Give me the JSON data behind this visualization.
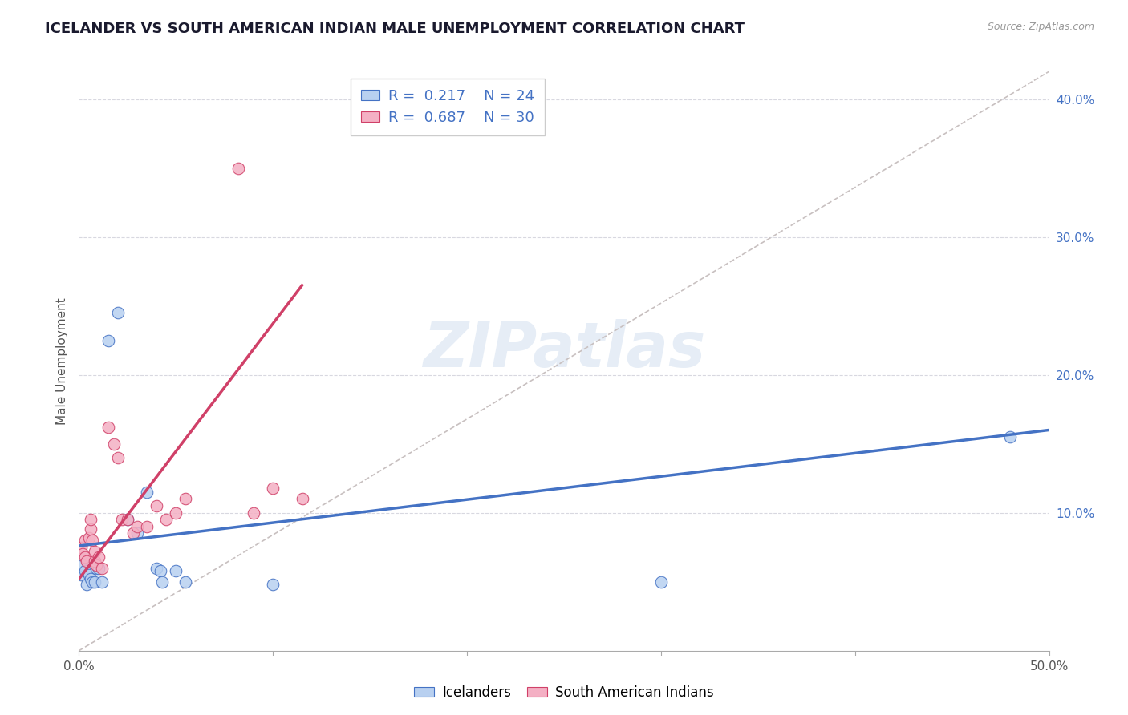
{
  "title": "ICELANDER VS SOUTH AMERICAN INDIAN MALE UNEMPLOYMENT CORRELATION CHART",
  "source": "Source: ZipAtlas.com",
  "ylabel": "Male Unemployment",
  "xlim": [
    0.0,
    0.5
  ],
  "ylim": [
    0.0,
    0.42
  ],
  "R_icelander": 0.217,
  "N_icelander": 24,
  "R_sai": 0.687,
  "N_sai": 30,
  "icelander_fill": "#b8d0f0",
  "sai_fill": "#f4b0c4",
  "icelander_line_color": "#4472c4",
  "sai_line_color": "#d04068",
  "diagonal_color": "#c8c0c0",
  "legend_label_1": "Icelanders",
  "legend_label_2": "South American Indians",
  "watermark_text": "ZIPatlas",
  "icelander_x": [
    0.001,
    0.002,
    0.003,
    0.004,
    0.005,
    0.006,
    0.007,
    0.008,
    0.009,
    0.01,
    0.012,
    0.015,
    0.02,
    0.025,
    0.03,
    0.035,
    0.04,
    0.042,
    0.043,
    0.05,
    0.055,
    0.1,
    0.3,
    0.48
  ],
  "icelander_y": [
    0.055,
    0.062,
    0.058,
    0.048,
    0.055,
    0.052,
    0.05,
    0.05,
    0.06,
    0.06,
    0.05,
    0.225,
    0.245,
    0.095,
    0.085,
    0.115,
    0.06,
    0.058,
    0.05,
    0.058,
    0.05,
    0.048,
    0.05,
    0.155
  ],
  "sai_x": [
    0.001,
    0.002,
    0.003,
    0.003,
    0.004,
    0.005,
    0.006,
    0.006,
    0.007,
    0.008,
    0.008,
    0.009,
    0.01,
    0.012,
    0.015,
    0.018,
    0.02,
    0.022,
    0.025,
    0.028,
    0.03,
    0.035,
    0.04,
    0.045,
    0.05,
    0.055,
    0.082,
    0.09,
    0.1,
    0.115
  ],
  "sai_y": [
    0.075,
    0.07,
    0.068,
    0.08,
    0.065,
    0.082,
    0.088,
    0.095,
    0.08,
    0.065,
    0.072,
    0.062,
    0.068,
    0.06,
    0.162,
    0.15,
    0.14,
    0.095,
    0.095,
    0.085,
    0.09,
    0.09,
    0.105,
    0.095,
    0.1,
    0.11,
    0.35,
    0.1,
    0.118,
    0.11
  ],
  "ice_line_x": [
    0.0,
    0.5
  ],
  "ice_line_y": [
    0.076,
    0.16
  ],
  "sai_line_x": [
    0.0,
    0.115
  ],
  "sai_line_y": [
    0.052,
    0.265
  ]
}
